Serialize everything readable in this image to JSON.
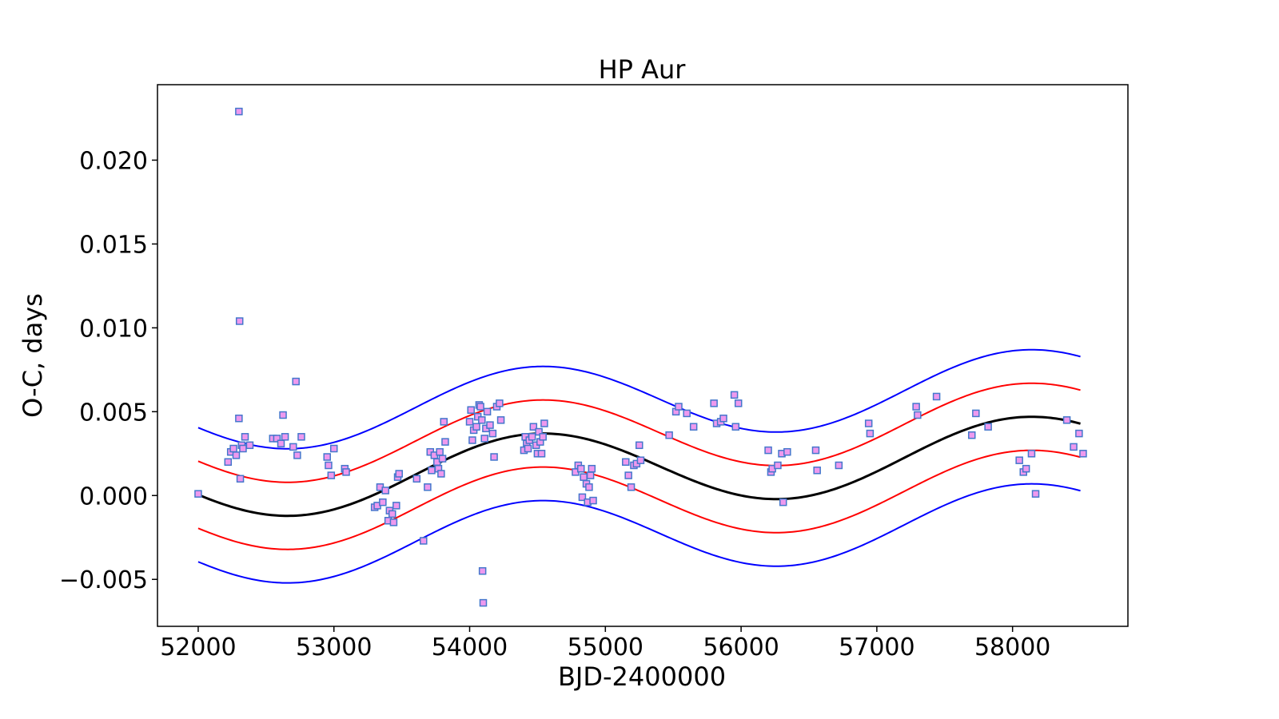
{
  "chart_data": {
    "type": "scatter",
    "title": "HP Aur",
    "xlabel": "BJD-2400000",
    "ylabel": "O-C, days",
    "xlim": [
      51700,
      58850
    ],
    "ylim": [
      -0.0078,
      0.0245
    ],
    "x_ticks": [
      52000,
      53000,
      54000,
      55000,
      56000,
      57000,
      58000
    ],
    "y_ticks": [
      -0.005,
      0.0,
      0.005,
      0.01,
      0.015,
      0.02
    ],
    "x_tick_labels": [
      "52000",
      "53000",
      "54000",
      "55000",
      "56000",
      "57000",
      "58000"
    ],
    "y_tick_labels": [
      "−0.005",
      "0.000",
      "0.005",
      "0.010",
      "0.015",
      "0.020"
    ],
    "grid": false,
    "colors": {
      "marker_fill": "#ee99ee",
      "marker_edge": "#4477cc",
      "fit": "#000000",
      "band_inner": "#ff0000",
      "band_outer": "#0000ff"
    },
    "fit_model": {
      "x_range": [
        52000,
        58500
      ],
      "x0": 52000,
      "offset": 0.0008,
      "slope_per_day": 2.77e-07,
      "amplitude": 0.0022,
      "period_days": 3600,
      "phase_days": 1600
    },
    "series": [
      {
        "name": "observed minima",
        "marker": "square",
        "points": [
          [
            52000,
            0.0001
          ],
          [
            52220,
            0.002
          ],
          [
            52240,
            0.0026
          ],
          [
            52260,
            0.0028
          ],
          [
            52280,
            0.0024
          ],
          [
            52300,
            0.0229
          ],
          [
            52305,
            0.0104
          ],
          [
            52300,
            0.0046
          ],
          [
            52310,
            0.001
          ],
          [
            52320,
            0.003
          ],
          [
            52330,
            0.0028
          ],
          [
            52345,
            0.0035
          ],
          [
            52380,
            0.003
          ],
          [
            52550,
            0.0034
          ],
          [
            52580,
            0.0034
          ],
          [
            52610,
            0.0031
          ],
          [
            52625,
            0.0048
          ],
          [
            52640,
            0.0035
          ],
          [
            52700,
            0.0029
          ],
          [
            52720,
            0.0068
          ],
          [
            52730,
            0.0024
          ],
          [
            52760,
            0.0035
          ],
          [
            52950,
            0.0023
          ],
          [
            52960,
            0.0018
          ],
          [
            52980,
            0.0012
          ],
          [
            53000,
            0.0028
          ],
          [
            53080,
            0.0016
          ],
          [
            53090,
            0.0014
          ],
          [
            53300,
            -0.0007
          ],
          [
            53320,
            -0.0006
          ],
          [
            53340,
            0.0005
          ],
          [
            53360,
            -0.0004
          ],
          [
            53380,
            0.0003
          ],
          [
            53400,
            -0.0015
          ],
          [
            53410,
            -0.0009
          ],
          [
            53430,
            -0.0011
          ],
          [
            53440,
            -0.0016
          ],
          [
            53460,
            -0.0006
          ],
          [
            53470,
            0.0011
          ],
          [
            53480,
            0.0013
          ],
          [
            53610,
            0.001
          ],
          [
            53660,
            -0.0027
          ],
          [
            53690,
            0.0005
          ],
          [
            53710,
            0.0026
          ],
          [
            53720,
            0.0015
          ],
          [
            53740,
            0.0024
          ],
          [
            53760,
            0.002
          ],
          [
            53770,
            0.0016
          ],
          [
            53780,
            0.0026
          ],
          [
            53790,
            0.0013
          ],
          [
            53800,
            0.0022
          ],
          [
            53810,
            0.0044
          ],
          [
            53820,
            0.0032
          ],
          [
            54000,
            0.0044
          ],
          [
            54010,
            0.0051
          ],
          [
            54020,
            0.0033
          ],
          [
            54030,
            0.0039
          ],
          [
            54050,
            0.0041
          ],
          [
            54060,
            0.0047
          ],
          [
            54070,
            0.0054
          ],
          [
            54080,
            0.0053
          ],
          [
            54090,
            0.0045
          ],
          [
            54095,
            -0.0045
          ],
          [
            54100,
            -0.0064
          ],
          [
            54110,
            0.0034
          ],
          [
            54120,
            0.004
          ],
          [
            54130,
            0.005
          ],
          [
            54150,
            0.0042
          ],
          [
            54170,
            0.0037
          ],
          [
            54180,
            0.0023
          ],
          [
            54200,
            0.0053
          ],
          [
            54220,
            0.0055
          ],
          [
            54230,
            0.0045
          ],
          [
            54400,
            0.0027
          ],
          [
            54410,
            0.0035
          ],
          [
            54420,
            0.0031
          ],
          [
            54430,
            0.0028
          ],
          [
            54440,
            0.0033
          ],
          [
            54460,
            0.0035
          ],
          [
            54470,
            0.0041
          ],
          [
            54490,
            0.003
          ],
          [
            54500,
            0.0025
          ],
          [
            54510,
            0.0038
          ],
          [
            54520,
            0.0032
          ],
          [
            54530,
            0.0025
          ],
          [
            54540,
            0.0035
          ],
          [
            54550,
            0.0043
          ],
          [
            54780,
            0.0014
          ],
          [
            54800,
            0.0018
          ],
          [
            54820,
            0.0016
          ],
          [
            54830,
            -0.0001
          ],
          [
            54840,
            0.0011
          ],
          [
            54860,
            0.0007
          ],
          [
            54870,
            -0.0004
          ],
          [
            54880,
            0.0005
          ],
          [
            54890,
            0.0012
          ],
          [
            54900,
            0.0016
          ],
          [
            54910,
            -0.0003
          ],
          [
            55150,
            0.002
          ],
          [
            55170,
            0.0012
          ],
          [
            55190,
            0.0005
          ],
          [
            55210,
            0.0018
          ],
          [
            55230,
            0.0019
          ],
          [
            55250,
            0.003
          ],
          [
            55260,
            0.0021
          ],
          [
            55470,
            0.0036
          ],
          [
            55520,
            0.005
          ],
          [
            55540,
            0.0053
          ],
          [
            55600,
            0.0049
          ],
          [
            55650,
            0.0041
          ],
          [
            55800,
            0.0055
          ],
          [
            55820,
            0.0043
          ],
          [
            55850,
            0.0044
          ],
          [
            55870,
            0.0046
          ],
          [
            55950,
            0.006
          ],
          [
            55960,
            0.0041
          ],
          [
            55980,
            0.0055
          ],
          [
            56200,
            0.0027
          ],
          [
            56220,
            0.0014
          ],
          [
            56230,
            0.0016
          ],
          [
            56270,
            0.0018
          ],
          [
            56300,
            0.0025
          ],
          [
            56310,
            -0.0004
          ],
          [
            56340,
            0.0026
          ],
          [
            56550,
            0.0027
          ],
          [
            56560,
            0.0015
          ],
          [
            56720,
            0.0018
          ],
          [
            56940,
            0.0043
          ],
          [
            56950,
            0.0037
          ],
          [
            57290,
            0.0053
          ],
          [
            57300,
            0.0048
          ],
          [
            57440,
            0.0059
          ],
          [
            57700,
            0.0036
          ],
          [
            57730,
            0.0049
          ],
          [
            57820,
            0.0041
          ],
          [
            58050,
            0.0021
          ],
          [
            58080,
            0.0014
          ],
          [
            58100,
            0.0016
          ],
          [
            58140,
            0.0025
          ],
          [
            58170,
            0.0001
          ],
          [
            58400,
            0.0045
          ],
          [
            58450,
            0.0029
          ],
          [
            58490,
            0.0037
          ],
          [
            58520,
            0.0025
          ]
        ]
      },
      {
        "name": "fit",
        "style": "line",
        "offset": 0.0
      },
      {
        "name": "band +1",
        "style": "line",
        "offset": 0.002
      },
      {
        "name": "band -1",
        "style": "line",
        "offset": -0.002
      },
      {
        "name": "band +2",
        "style": "line",
        "offset": 0.004
      },
      {
        "name": "band -2",
        "style": "line",
        "offset": -0.004
      }
    ]
  }
}
